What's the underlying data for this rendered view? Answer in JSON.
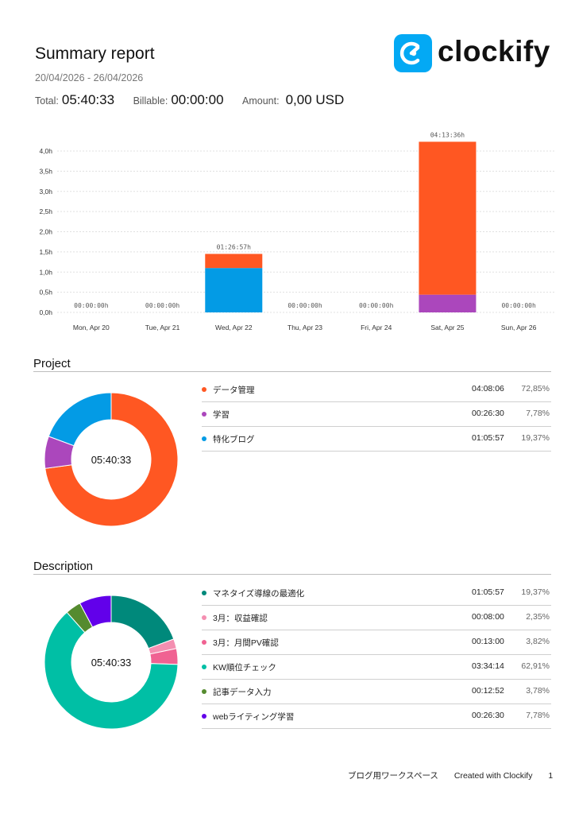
{
  "report": {
    "title": "Summary report",
    "date_range": "20/04/2026 - 26/04/2026",
    "total_label": "Total:",
    "total_value": "05:40:33",
    "billable_label": "Billable:",
    "billable_value": "00:00:00",
    "amount_label": "Amount:",
    "amount_value": "0,00 USD"
  },
  "brand": {
    "name": "clockify",
    "color": "#03a9f4"
  },
  "chart_data": {
    "type": "bar",
    "stacked": true,
    "unit": "h",
    "y_ticks": [
      "0,0h",
      "0,5h",
      "1,0h",
      "1,5h",
      "2,0h",
      "2,5h",
      "3,0h",
      "3,5h",
      "4,0h"
    ],
    "ylim": [
      0,
      4.5
    ],
    "categories": [
      "Mon, Apr 20",
      "Tue, Apr 21",
      "Wed, Apr 22",
      "Thu, Apr 23",
      "Fri, Apr 24",
      "Sat, Apr 25",
      "Sun, Apr 26"
    ],
    "totals": [
      "00:00:00h",
      "00:00:00h",
      "01:26:57h",
      "00:00:00h",
      "00:00:00h",
      "04:13:36h",
      "00:00:00h"
    ],
    "series": [
      {
        "name": "学習",
        "color": "#ab47bc",
        "values": [
          0,
          0,
          0,
          0,
          0,
          0.44,
          0
        ]
      },
      {
        "name": "特化ブログ",
        "color": "#039be5",
        "values": [
          0,
          0,
          1.1,
          0,
          0,
          0,
          0
        ]
      },
      {
        "name": "データ管理",
        "color": "#ff5722",
        "values": [
          0,
          0,
          0.35,
          0,
          0,
          3.79,
          0
        ]
      }
    ]
  },
  "project": {
    "title": "Project",
    "center_label": "05:40:33",
    "items": [
      {
        "name": "データ管理",
        "duration": "04:08:06",
        "percent": "72,85%",
        "value": 72.85,
        "color": "#ff5722"
      },
      {
        "name": "学習",
        "duration": "00:26:30",
        "percent": "7,78%",
        "value": 7.78,
        "color": "#ab47bc"
      },
      {
        "name": "特化ブログ",
        "duration": "01:05:57",
        "percent": "19,37%",
        "value": 19.37,
        "color": "#039be5"
      }
    ]
  },
  "description": {
    "title": "Description",
    "center_label": "05:40:33",
    "items": [
      {
        "name": "マネタイズ導線の最適化",
        "duration": "01:05:57",
        "percent": "19,37%",
        "value": 19.37,
        "color": "#00897b"
      },
      {
        "name": "3月：収益確認",
        "duration": "00:08:00",
        "percent": "2,35%",
        "value": 2.35,
        "color": "#f48fb1"
      },
      {
        "name": "3月：月間PV確認",
        "duration": "00:13:00",
        "percent": "3,82%",
        "value": 3.82,
        "color": "#f06292"
      },
      {
        "name": "KW順位チェック",
        "duration": "03:34:14",
        "percent": "62,91%",
        "value": 62.91,
        "color": "#00bfa5"
      },
      {
        "name": "記事データ入力",
        "duration": "00:12:52",
        "percent": "3,78%",
        "value": 3.78,
        "color": "#558b2f"
      },
      {
        "name": "webライティング学習",
        "duration": "00:26:30",
        "percent": "7,78%",
        "value": 7.78,
        "color": "#6200ea"
      }
    ]
  },
  "footer": {
    "workspace": "ブログ用ワークスペース",
    "created_with": "Created with Clockify",
    "page": "1"
  }
}
